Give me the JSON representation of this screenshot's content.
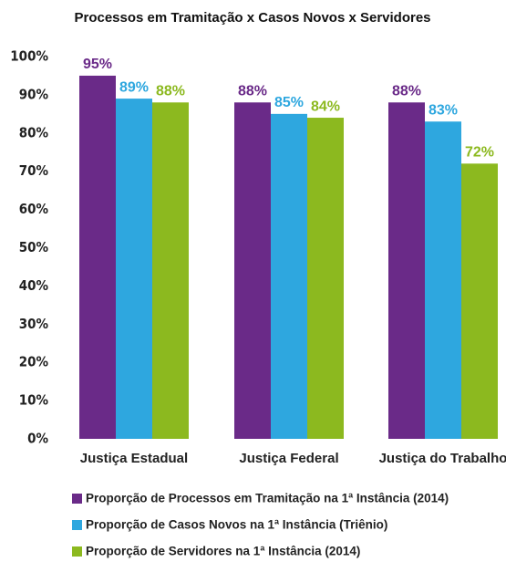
{
  "chart_data": {
    "type": "bar",
    "title": "Processos em Tramitação x Casos Novos x Servidores",
    "categories": [
      "Justiça Estadual",
      "Justiça Federal",
      "Justiça do Trabalho"
    ],
    "series": [
      {
        "name": "Proporção de Processos em Tramitação na 1ª Instância (2014)",
        "color": "#6a2a88",
        "values": [
          95,
          88,
          88
        ],
        "value_labels": [
          "95%",
          "88%",
          "88%"
        ]
      },
      {
        "name": "Proporção de Casos Novos na 1ª Instância (Triênio)",
        "color": "#2ea7df",
        "values": [
          89,
          85,
          83
        ],
        "value_labels": [
          "89%",
          "85%",
          "83%"
        ]
      },
      {
        "name": "Proporção de Servidores na 1ª Instância (2014)",
        "color": "#8cb91f",
        "values": [
          88,
          84,
          72
        ],
        "value_labels": [
          "88%",
          "84%",
          "72%"
        ]
      }
    ],
    "ylim": [
      0,
      100
    ],
    "yticks": [
      {
        "value": 0,
        "label": "0%"
      },
      {
        "value": 10,
        "label": "10%"
      },
      {
        "value": 20,
        "label": "20%"
      },
      {
        "value": 30,
        "label": "30%"
      },
      {
        "value": 40,
        "label": "40%"
      },
      {
        "value": 50,
        "label": "50%"
      },
      {
        "value": 60,
        "label": "60%"
      },
      {
        "value": 70,
        "label": "70%"
      },
      {
        "value": 80,
        "label": "80%"
      },
      {
        "value": 90,
        "label": "90%"
      },
      {
        "value": 100,
        "label": "100%"
      }
    ],
    "grid": false,
    "legend": "bottom"
  }
}
